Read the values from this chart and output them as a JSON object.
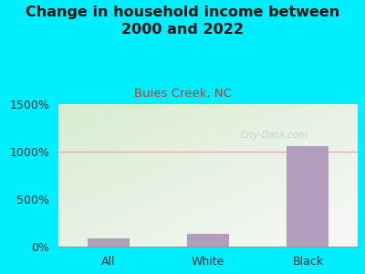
{
  "title": "Change in household income between\n2000 and 2022",
  "subtitle": "Buies Creek, NC",
  "categories": [
    "All",
    "White",
    "Black"
  ],
  "values": [
    90,
    130,
    1060
  ],
  "bar_color": "#b39dbd",
  "title_fontsize": 11.5,
  "subtitle_fontsize": 9.5,
  "subtitle_color": "#c0392b",
  "tick_label_fontsize": 9,
  "ylim": [
    0,
    1500
  ],
  "yticks": [
    0,
    500,
    1000,
    1500
  ],
  "ytick_labels": [
    "0%",
    "500%",
    "1000%",
    "1500%"
  ],
  "background_outer": "#00eeff",
  "background_plot_top_left": "#d8ecd0",
  "background_plot_bottom_right": "#f8f8f8",
  "grid_color": "#e8a0a0",
  "watermark": "City-Data.com",
  "watermark_color": "#aabbcc"
}
